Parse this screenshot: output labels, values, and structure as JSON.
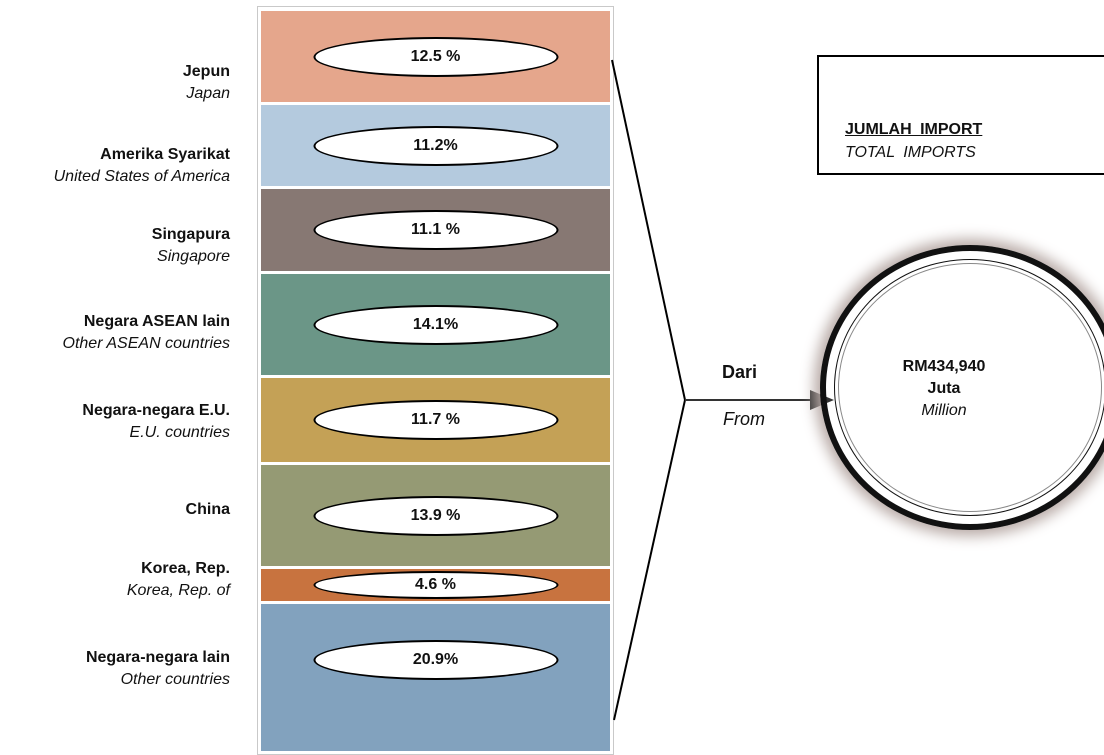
{
  "countries": [
    {
      "malay": "Jepun",
      "english": "Japan",
      "share": "12.5 %",
      "color": "#e5a68c"
    },
    {
      "malay": "Amerika Syarikat",
      "english": "United States of America",
      "share": "11.2%",
      "color": "#b4cade"
    },
    {
      "malay": "Singapura",
      "english": "Singapore",
      "share": "11.1 %",
      "color": "#877873"
    },
    {
      "malay": "Negara ASEAN lain",
      "english": "Other ASEAN countries",
      "share": "14.1%",
      "color": "#6b9687"
    },
    {
      "malay": "Negara-negara E.U.",
      "english": "E.U. countries",
      "share": "11.7 %",
      "color": "#c4a156"
    },
    {
      "malay": "China",
      "english": "",
      "share": "13.9 %",
      "color": "#959a74"
    },
    {
      "malay": "Korea, Rep.",
      "english": "Korea, Rep. of",
      "share": "4.6 %",
      "color": "#c8733f"
    },
    {
      "malay": "Negara-negara lain",
      "english": "Other countries",
      "share": "20.9%",
      "color": "#82a2be"
    }
  ],
  "connector": {
    "malay": "Dari",
    "english": "From"
  },
  "total": {
    "title_malay": "JUMLAH  IMPORT",
    "title_english": "TOTAL  IMPORTS",
    "value": "RM434,940",
    "unit_malay": "Juta",
    "unit_english": "Million"
  }
}
